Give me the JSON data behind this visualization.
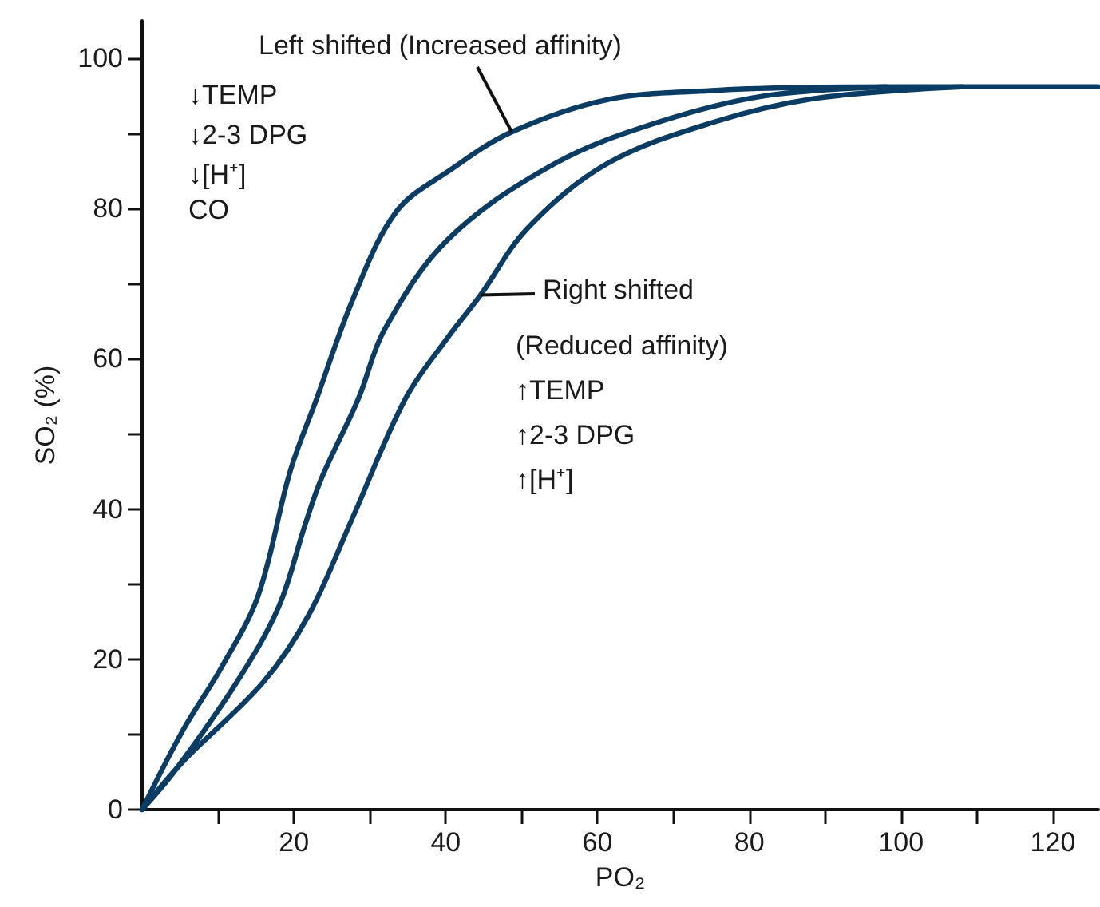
{
  "chart_data": {
    "type": "line",
    "xlabel": "PO₂",
    "ylabel": "SO₂ (%)",
    "xlim": [
      0,
      126
    ],
    "ylim": [
      0,
      105
    ],
    "xticks": [
      {
        "value": 10,
        "label": null
      },
      20,
      {
        "value": 30,
        "label": null
      },
      40,
      {
        "value": 50,
        "label": null
      },
      60,
      {
        "value": 70,
        "label": null
      },
      80,
      {
        "value": 90,
        "label": null
      },
      100,
      {
        "value": 110,
        "label": null
      },
      120
    ],
    "yticks": [
      0,
      {
        "value": 10,
        "label": null
      },
      20,
      {
        "value": 30,
        "label": null
      },
      40,
      {
        "value": 50,
        "label": null
      },
      60,
      {
        "value": 70,
        "label": null
      },
      80,
      {
        "value": 90,
        "label": null
      },
      100
    ],
    "grid": false,
    "marker": "none",
    "line_style": "solid",
    "series": [
      {
        "color": "#0b3c64",
        "x": [
          0,
          5.4,
          10.5,
          15.3,
          19.5,
          23,
          27.8,
          33.5,
          40.4,
          48.7,
          61.3,
          75,
          85.8,
          100,
          126
        ],
        "values": [
          0,
          10.6,
          19,
          28.5,
          45,
          54.7,
          68,
          79.6,
          85,
          90.2,
          94.5,
          95.7,
          96.1,
          96.2,
          96.2
        ]
      },
      {
        "color": "#0b3c64",
        "x": [
          0,
          4.2,
          12.5,
          18,
          21.5,
          23.6,
          28.5,
          32,
          40.4,
          54.4,
          68,
          82,
          98
        ],
        "values": [
          0,
          5,
          17,
          27,
          38,
          44,
          54.7,
          64,
          76,
          86,
          91.5,
          95,
          96.2
        ]
      },
      {
        "color": "#0b3c64",
        "x": [
          0,
          5.4,
          16,
          22,
          27.8,
          34.7,
          40.4,
          44.6,
          50.8,
          61.3,
          75.3,
          89,
          108
        ],
        "values": [
          0,
          6.4,
          17,
          26,
          39,
          54.7,
          63,
          68.5,
          77.4,
          86,
          91.5,
          94.7,
          96.2
        ]
      }
    ],
    "annotations": [
      {
        "text": "Left shifted (Increased affinity)",
        "x": 48.7,
        "y": 90.2
      },
      "↓TEMP",
      "↓2-3 DPG",
      "↓[H⁺]",
      "CO",
      {
        "text": "Right shifted",
        "x": 44.6,
        "y": 68.5
      },
      "(Reduced affinity)",
      "↑TEMP",
      "↑2-3 DPG",
      "↑[H⁺]"
    ]
  }
}
